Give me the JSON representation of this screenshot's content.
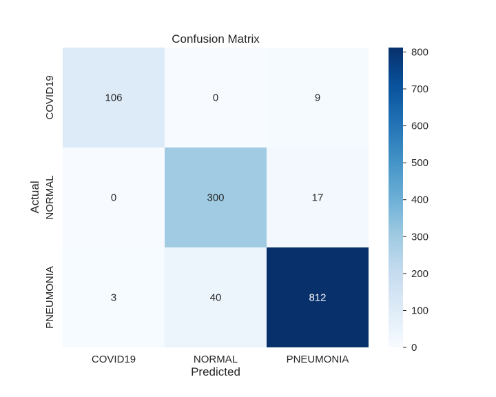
{
  "chart_data": {
    "type": "heatmap",
    "title": "Confusion Matrix",
    "xlabel": "Predicted",
    "ylabel": "Actual",
    "x_categories": [
      "COVID19",
      "NORMAL",
      "PNEUMONIA"
    ],
    "y_categories": [
      "COVID19",
      "NORMAL",
      "PNEUMONIA"
    ],
    "matrix": [
      [
        106,
        0,
        9
      ],
      [
        0,
        300,
        17
      ],
      [
        3,
        40,
        812
      ]
    ],
    "colormap": "Blues",
    "colorbar": {
      "range": [
        0,
        812
      ],
      "ticks": [
        0,
        100,
        200,
        300,
        400,
        500,
        600,
        700,
        800
      ],
      "placement": "right"
    },
    "grid": false,
    "annotations": true
  }
}
